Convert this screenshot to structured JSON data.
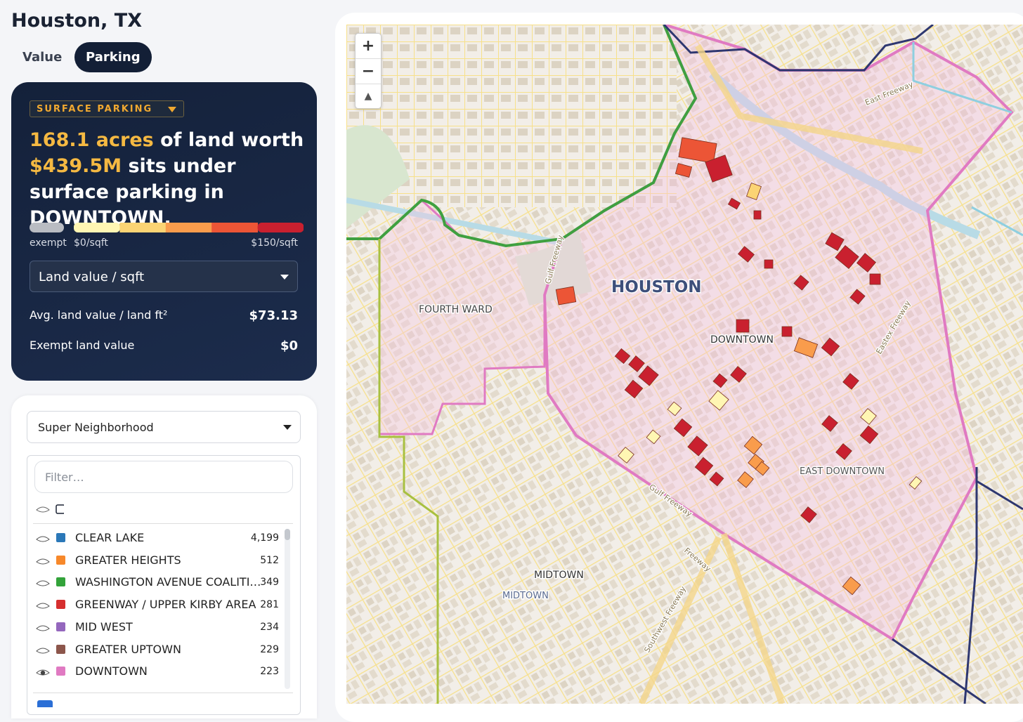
{
  "header": {
    "title": "Houston, TX",
    "tabs": [
      {
        "label": "Value",
        "active": false
      },
      {
        "label": "Parking",
        "active": true
      }
    ]
  },
  "summary": {
    "dropdown": "SURFACE PARKING",
    "headline": [
      {
        "text": "168.1 acres",
        "highlight": true
      },
      {
        "text": " of land worth ",
        "highlight": false
      },
      {
        "text": "$439.5M",
        "highlight": true
      },
      {
        "text": " sits under surface parking in DOWNTOWN.",
        "highlight": false
      }
    ],
    "legend": {
      "exempt": "exempt",
      "min": "$0/sqft",
      "max": "$150/sqft",
      "exempt_color": "#b9bcc2",
      "colors": [
        "#fff6b3",
        "#fbd474",
        "#f99c4c",
        "#ec5536",
        "#c9202f"
      ]
    },
    "metric_select": "Land value / sqft",
    "stats": [
      {
        "label": "Avg. land value / land ft²",
        "value": "$73.13"
      },
      {
        "label": "Exempt land value",
        "value": "$0"
      }
    ]
  },
  "list": {
    "group_select": "Super Neighborhood",
    "filter_placeholder": "Filter…",
    "items": [
      {
        "name": "CLEAR LAKE",
        "count": "4,199",
        "color": "#2b78b8",
        "visible": false
      },
      {
        "name": "GREATER HEIGHTS",
        "count": "512",
        "color": "#f7882a",
        "visible": false
      },
      {
        "name": "WASHINGTON AVENUE COALITI…",
        "count": "349",
        "color": "#33a33a",
        "visible": false
      },
      {
        "name": "GREENWAY / UPPER KIRBY AREA",
        "count": "281",
        "color": "#d62f2f",
        "visible": false
      },
      {
        "name": "MID WEST",
        "count": "234",
        "color": "#9467bd",
        "visible": false
      },
      {
        "name": "GREATER UPTOWN",
        "count": "229",
        "color": "#8c564b",
        "visible": false
      },
      {
        "name": "DOWNTOWN",
        "count": "223",
        "color": "#e07ac2",
        "visible": true
      }
    ]
  },
  "map": {
    "controls": [
      "+",
      "−",
      "▲"
    ],
    "labels": [
      "HOUSTON",
      "FOURTH WARD",
      "DOWNTOWN",
      "EAST DOWNTOWN",
      "MIDTOWN",
      "MIDTOWN"
    ],
    "roads": [
      "East Freeway",
      "Gulf Freeway",
      "Gulf Freeway",
      "Eastex Freeway",
      "Southwest Freeway",
      "Freeway"
    ]
  }
}
